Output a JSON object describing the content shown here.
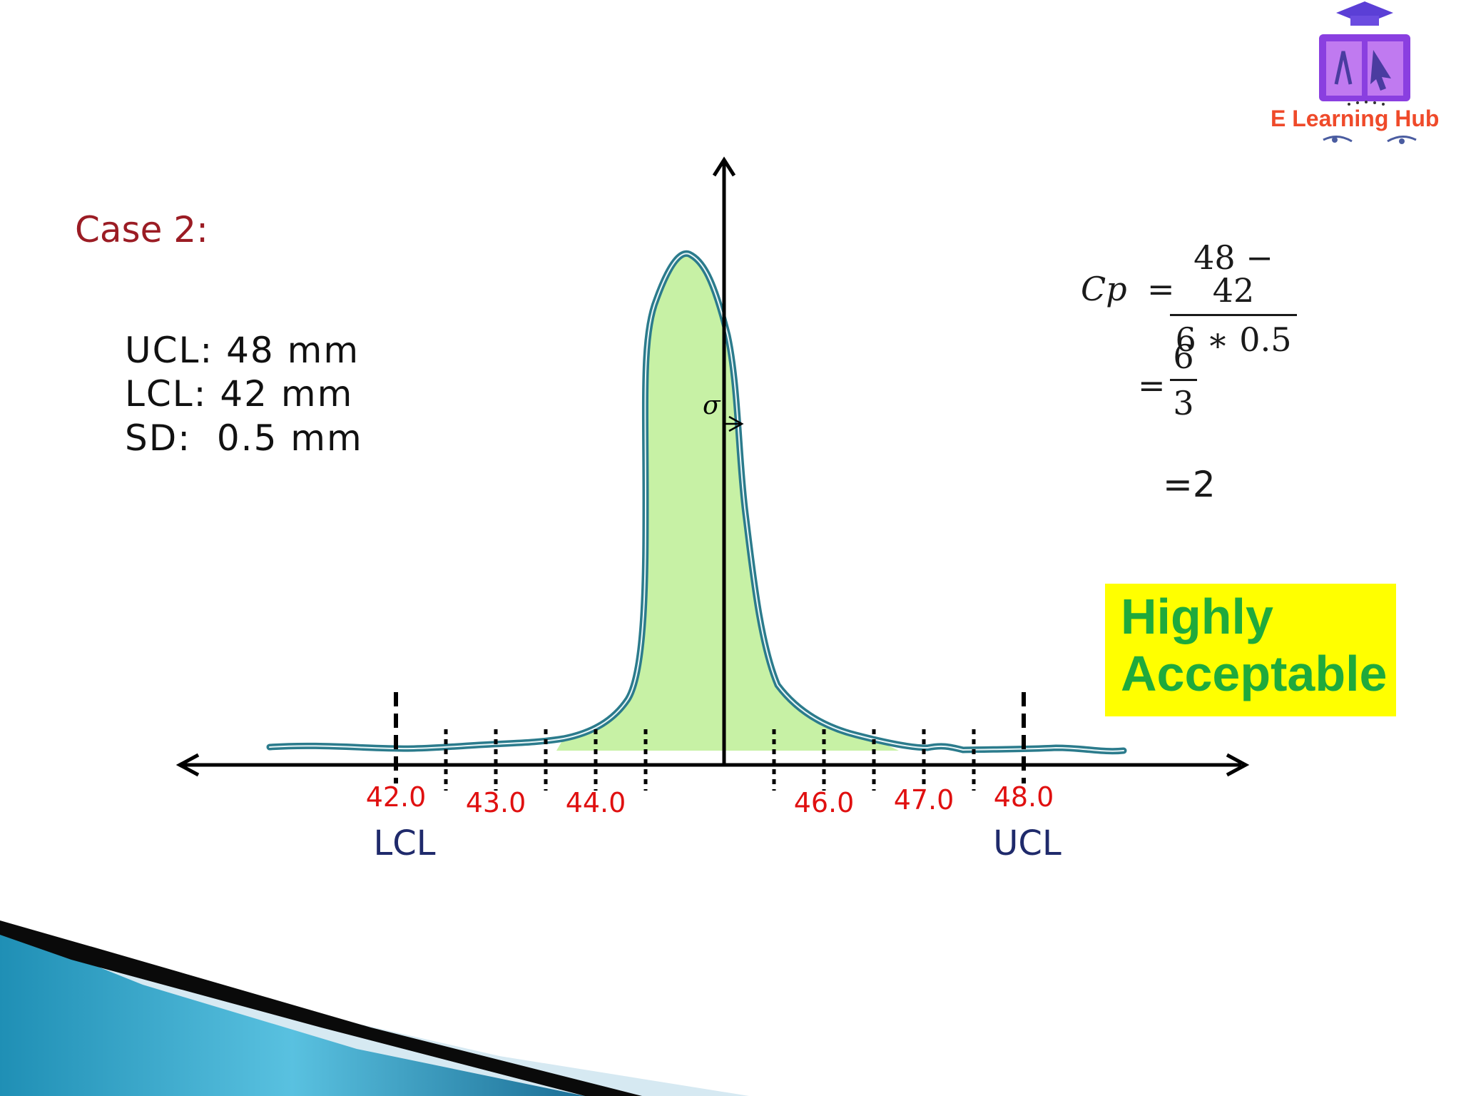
{
  "slide": {
    "case_title": "Case 2:",
    "specs": {
      "ucl": "UCL: 48 mm",
      "lcl": "LCL: 42 mm",
      "sd": "SD:  0.5 mm"
    },
    "formula": {
      "lhs": "Cp",
      "eq": "=",
      "frac1_num": "48 − 42",
      "frac1_den": "6 ∗ 0.5",
      "frac2_num": "6",
      "frac2_den": "3",
      "result": "=2"
    },
    "verdict": {
      "line1": "Highly",
      "line2": "Acceptable",
      "background": "#ffff00",
      "text_color": "#1faa3c"
    },
    "logo": {
      "text": "E Learning Hub",
      "icon": "graduation-book-icon"
    },
    "colors": {
      "curve_stroke": "#2b7b8c",
      "curve_fill": "#c4f0a0",
      "tick_label": "#e01010",
      "limit_label": "#1f2a6b",
      "title": "#9b1c24"
    }
  },
  "diagram": {
    "axis_ticks": [
      {
        "value": 42.0,
        "label": "42.0"
      },
      {
        "value": 43.0,
        "label": "43.0"
      },
      {
        "value": 44.0,
        "label": "44.0"
      },
      {
        "value": 46.0,
        "label": "46.0"
      },
      {
        "value": 47.0,
        "label": "47.0"
      },
      {
        "value": 48.0,
        "label": "48.0"
      }
    ],
    "lcl_label": "LCL",
    "ucl_label": "UCL",
    "sigma_label": "σ"
  }
}
